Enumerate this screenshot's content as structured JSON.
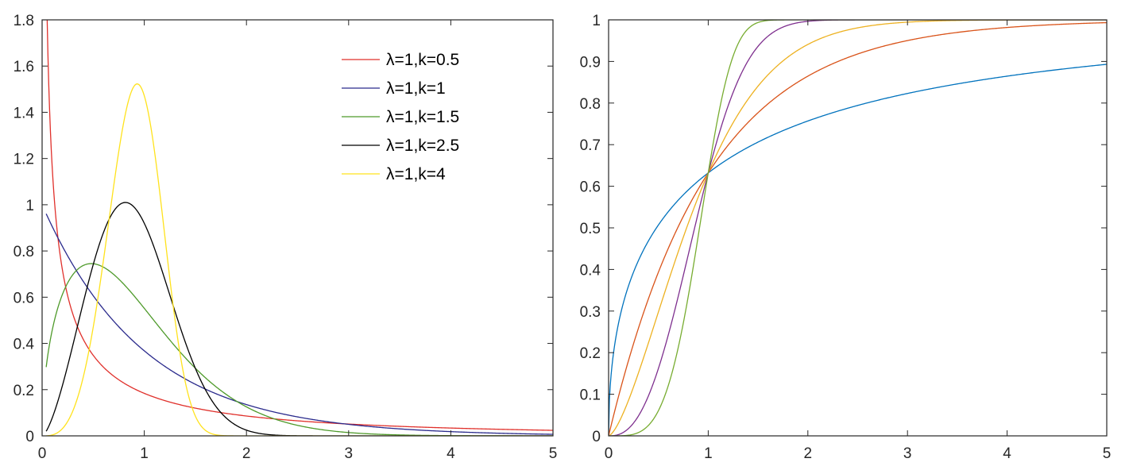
{
  "chart_data": [
    {
      "type": "line",
      "title": "",
      "xlabel": "",
      "ylabel": "",
      "xlim": [
        0,
        5
      ],
      "ylim": [
        0,
        1.8
      ],
      "xticks": [
        "0",
        "1",
        "2",
        "3",
        "4",
        "5"
      ],
      "yticks": [
        "0",
        "0.2",
        "0.4",
        "0.6",
        "0.8",
        "1",
        "1.2",
        "1.4",
        "1.6",
        "1.8"
      ],
      "grid": false,
      "legend_position": "top-right",
      "function": "weibull-pdf",
      "x_start": 0.04,
      "series": [
        {
          "name": "λ=1,k=0.5",
          "lambda": 1,
          "k": 0.5,
          "color": "#e0302b"
        },
        {
          "name": "λ=1,k=1",
          "lambda": 1,
          "k": 1,
          "color": "#2a2a8c"
        },
        {
          "name": "λ=1,k=1.5",
          "lambda": 1,
          "k": 1.5,
          "color": "#4e9a2a"
        },
        {
          "name": "λ=1,k=2.5",
          "lambda": 1,
          "k": 2.5,
          "color": "#000000"
        },
        {
          "name": "λ=1,k=4",
          "lambda": 1,
          "k": 4,
          "color": "#ffe21c"
        }
      ]
    },
    {
      "type": "line",
      "title": "",
      "xlabel": "",
      "ylabel": "",
      "xlim": [
        0,
        5
      ],
      "ylim": [
        0,
        1
      ],
      "xticks": [
        "0",
        "1",
        "2",
        "3",
        "4",
        "5"
      ],
      "yticks": [
        "0",
        "0.1",
        "0.2",
        "0.3",
        "0.4",
        "0.5",
        "0.6",
        "0.7",
        "0.8",
        "0.9",
        "1"
      ],
      "grid": false,
      "function": "weibull-cdf",
      "x_start": 0,
      "series": [
        {
          "lambda": 1,
          "k": 0.5,
          "color": "#0072bd"
        },
        {
          "lambda": 1,
          "k": 1,
          "color": "#d95319"
        },
        {
          "lambda": 1,
          "k": 1.5,
          "color": "#edb120"
        },
        {
          "lambda": 1,
          "k": 2.5,
          "color": "#7e2f8e"
        },
        {
          "lambda": 1,
          "k": 4,
          "color": "#77ac30"
        }
      ]
    }
  ]
}
